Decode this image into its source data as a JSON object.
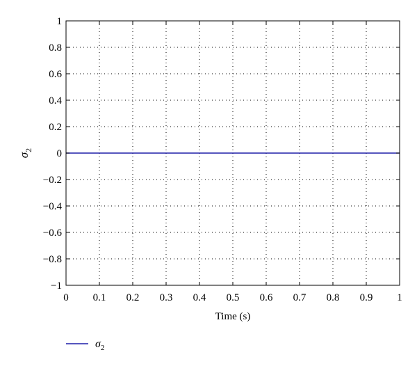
{
  "chart_data": {
    "type": "line",
    "title": "",
    "xlabel": "Time (s)",
    "ylabel": "σ",
    "ylabel_subscript": "2",
    "xlim": [
      0,
      1
    ],
    "ylim": [
      -1,
      1
    ],
    "x_ticks": [
      0,
      0.1,
      0.2,
      0.3,
      0.4,
      0.5,
      0.6,
      0.7,
      0.8,
      0.9,
      1
    ],
    "x_tick_labels": [
      "0",
      "0.1",
      "0.2",
      "0.3",
      "0.4",
      "0.5",
      "0.6",
      "0.7",
      "0.8",
      "0.9",
      "1"
    ],
    "y_ticks": [
      -1,
      -0.8,
      -0.6,
      -0.4,
      -0.2,
      0,
      0.2,
      0.4,
      0.6,
      0.8,
      1
    ],
    "y_tick_labels": [
      "−1",
      "−0.8",
      "−0.6",
      "−0.4",
      "−0.2",
      "0",
      "0.2",
      "0.4",
      "0.6",
      "0.8",
      "1"
    ],
    "grid": true,
    "grid_style": "dotted",
    "legend_position": "below",
    "series": [
      {
        "name": "σ",
        "name_subscript": "2",
        "color": "#1f1fa8",
        "x": [
          0,
          1
        ],
        "y": [
          0,
          0
        ]
      }
    ]
  }
}
